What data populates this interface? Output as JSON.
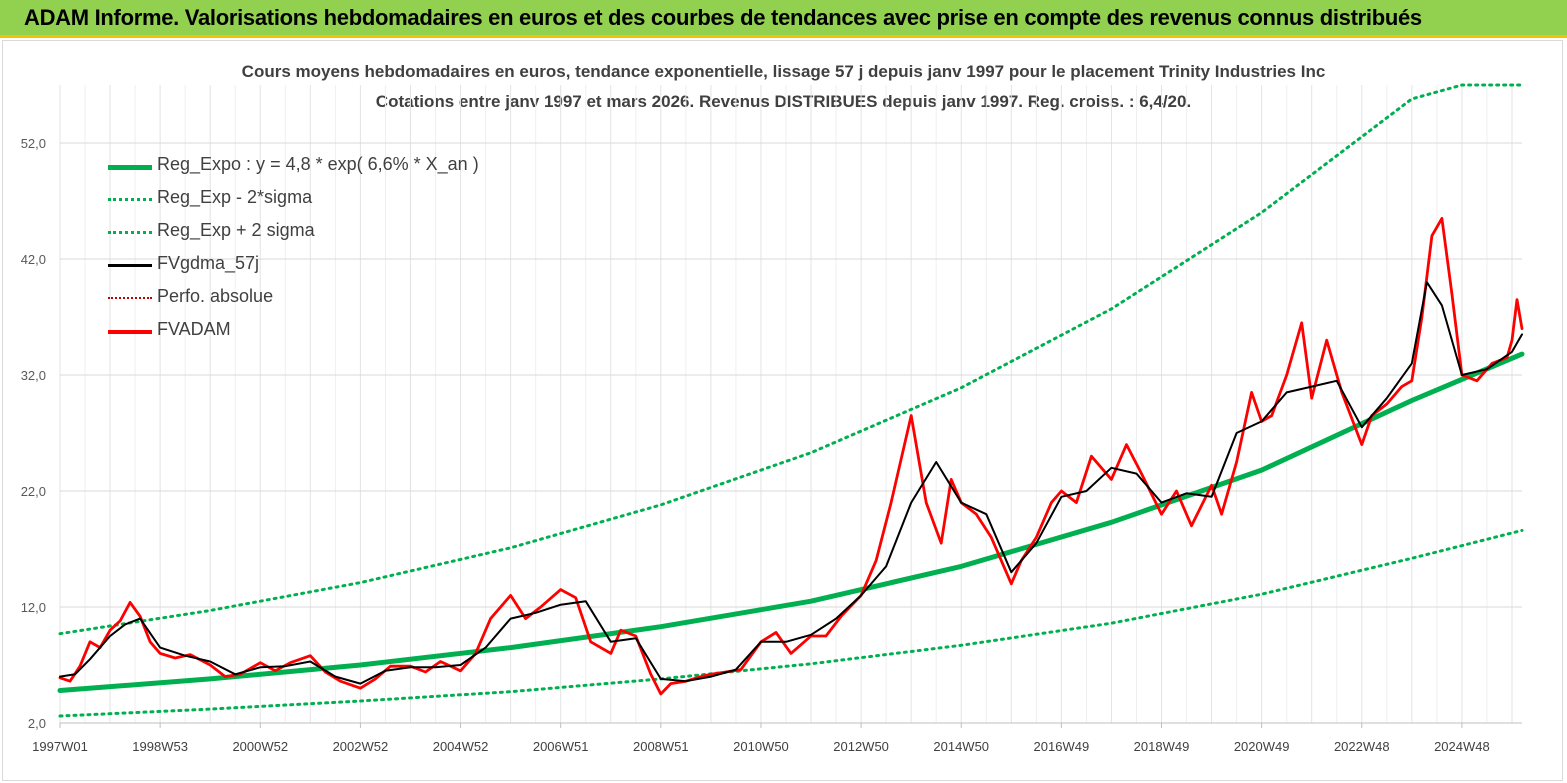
{
  "banner": {
    "title": "ADAM Informe. Valorisations hebdomadaires en euros et des courbes de tendances avec prise en compte des revenus connus distribués"
  },
  "chart_data": {
    "type": "line",
    "title": "Cours moyens hebdomadaires en euros, tendance exponentielle, lissage 57 j depuis janv 1997 pour le placement Trinity Industries Inc",
    "subtitle": "Cotations entre janv 1997 et mars 2026. Revenus DISTRIBUES depuis janv 1997. Reg. croiss. : 6,4/20.",
    "xlabel": "",
    "ylabel": "",
    "xlim": [
      1997.0,
      2026.2
    ],
    "ylim": [
      2.0,
      57.0
    ],
    "yticks": [
      2.0,
      12.0,
      22.0,
      32.0,
      42.0,
      52.0
    ],
    "ytick_labels": [
      "2,0",
      "12,0",
      "22,0",
      "32,0",
      "42,0",
      "52,0"
    ],
    "xticks": [
      1997.0,
      1999.0,
      2001.0,
      2003.0,
      2005.0,
      2007.0,
      2009.0,
      2011.0,
      2013.0,
      2015.0,
      2017.0,
      2019.0,
      2021.0,
      2023.0,
      2025.0
    ],
    "xtick_labels": [
      "1997W01",
      "1998W53",
      "2000W52",
      "2002W52",
      "2004W52",
      "2006W51",
      "2008W51",
      "2010W50",
      "2012W50",
      "2014W50",
      "2016W49",
      "2018W49",
      "2020W49",
      "2022W48",
      "2024W48"
    ],
    "grid": true,
    "legend_position": "top-left",
    "colors": {
      "reg": "#00b050",
      "band": "#00b050",
      "smooth": "#000000",
      "perfo": "#c00000",
      "price": "#ff0000"
    },
    "series": [
      {
        "name": "Reg_Expo : y = 4,8 * exp( 6,6% *  X_an )",
        "style": "thick-solid",
        "color": "#00b050",
        "x": [
          1997.0,
          2000.0,
          2003.0,
          2006.0,
          2009.0,
          2012.0,
          2015.0,
          2018.0,
          2021.0,
          2024.0,
          2026.2
        ],
        "y": [
          4.8,
          5.8,
          7.0,
          8.5,
          10.3,
          12.5,
          15.5,
          19.3,
          23.8,
          29.8,
          33.8
        ]
      },
      {
        "name": "Reg_Exp - 2*sigma",
        "style": "dotted",
        "color": "#00b050",
        "x": [
          1997.0,
          2000.0,
          2003.0,
          2006.0,
          2009.0,
          2012.0,
          2015.0,
          2018.0,
          2021.0,
          2024.0,
          2026.2
        ],
        "y": [
          2.6,
          3.2,
          3.9,
          4.7,
          5.8,
          7.1,
          8.7,
          10.6,
          13.1,
          16.2,
          18.6
        ]
      },
      {
        "name": "Reg_Exp + 2 sigma",
        "style": "dotted",
        "color": "#00b050",
        "x": [
          1997.0,
          2000.0,
          2003.0,
          2006.0,
          2009.0,
          2012.0,
          2015.0,
          2018.0,
          2021.0,
          2024.0,
          2025.0,
          2026.2
        ],
        "y": [
          9.7,
          11.7,
          14.1,
          17.1,
          20.8,
          25.3,
          30.9,
          37.7,
          46.0,
          55.8,
          57.0,
          57.0
        ]
      },
      {
        "name": "FVgdma_57j",
        "style": "solid",
        "color": "#000000",
        "x": [
          1997.0,
          1997.3,
          1997.6,
          1998.0,
          1998.3,
          1998.6,
          1999.0,
          1999.5,
          2000.0,
          2000.5,
          2001.0,
          2001.5,
          2002.0,
          2002.5,
          2003.0,
          2003.5,
          2004.0,
          2004.5,
          2005.0,
          2005.5,
          2006.0,
          2006.5,
          2007.0,
          2007.5,
          2008.0,
          2008.5,
          2009.0,
          2009.5,
          2010.0,
          2010.5,
          2011.0,
          2011.5,
          2012.0,
          2012.5,
          2013.0,
          2013.5,
          2014.0,
          2014.5,
          2015.0,
          2015.5,
          2016.0,
          2016.5,
          2017.0,
          2017.5,
          2018.0,
          2018.5,
          2019.0,
          2019.5,
          2020.0,
          2020.5,
          2021.0,
          2021.5,
          2022.0,
          2022.5,
          2023.0,
          2023.5,
          2024.0,
          2024.3,
          2024.6,
          2025.0,
          2025.5,
          2026.0,
          2026.2
        ],
        "y": [
          6.0,
          6.2,
          7.5,
          9.5,
          10.5,
          11.0,
          8.5,
          7.8,
          7.3,
          6.2,
          6.8,
          6.9,
          7.3,
          6.0,
          5.4,
          6.5,
          6.8,
          6.8,
          7.0,
          8.5,
          11.0,
          11.5,
          12.2,
          12.5,
          9.0,
          9.3,
          5.8,
          5.6,
          6.0,
          6.6,
          9.0,
          9.0,
          9.6,
          11.0,
          13.0,
          15.5,
          21.0,
          24.5,
          21.0,
          20.0,
          15.0,
          17.5,
          21.5,
          22.0,
          24.0,
          23.5,
          21.0,
          21.8,
          21.5,
          27.0,
          28.0,
          30.5,
          31.0,
          31.5,
          27.5,
          30.0,
          33.0,
          40.0,
          38.0,
          32.0,
          32.5,
          34.0,
          35.5
        ]
      },
      {
        "name": "Perfo. absolue",
        "style": "dotted",
        "color": "#c00000",
        "x": [
          1997.0,
          1998.0,
          1999.0,
          2000.0,
          2001.0,
          2002.0,
          2003.0,
          2004.0,
          2005.0,
          2006.0,
          2007.0,
          2008.0,
          2009.0,
          2010.0,
          2011.0,
          2012.0,
          2013.0,
          2014.0,
          2015.0,
          2016.0,
          2017.0,
          2018.0,
          2019.0,
          2020.0,
          2021.0,
          2022.0,
          2023.0,
          2024.0,
          2025.0,
          2026.2
        ],
        "y": [
          6.0,
          9.5,
          8.5,
          7.3,
          6.8,
          7.3,
          5.4,
          6.8,
          7.0,
          11.0,
          12.2,
          9.0,
          5.8,
          6.0,
          9.0,
          9.6,
          13.0,
          21.0,
          21.0,
          15.0,
          21.5,
          24.0,
          21.0,
          21.5,
          28.0,
          31.0,
          27.5,
          33.0,
          32.0,
          35.5
        ]
      },
      {
        "name": "FVADAM",
        "style": "solid",
        "color": "#ff0000",
        "x": [
          1997.0,
          1997.2,
          1997.4,
          1997.6,
          1997.8,
          1998.0,
          1998.2,
          1998.4,
          1998.6,
          1998.8,
          1999.0,
          1999.3,
          1999.6,
          2000.0,
          2000.3,
          2000.6,
          2001.0,
          2001.3,
          2001.6,
          2002.0,
          2002.3,
          2002.6,
          2003.0,
          2003.3,
          2003.6,
          2004.0,
          2004.3,
          2004.6,
          2005.0,
          2005.3,
          2005.6,
          2006.0,
          2006.3,
          2006.6,
          2007.0,
          2007.3,
          2007.6,
          2008.0,
          2008.2,
          2008.5,
          2008.8,
          2009.0,
          2009.2,
          2009.5,
          2009.8,
          2010.0,
          2010.3,
          2010.6,
          2011.0,
          2011.3,
          2011.6,
          2012.0,
          2012.3,
          2012.6,
          2013.0,
          2013.3,
          2013.6,
          2014.0,
          2014.3,
          2014.6,
          2014.8,
          2015.0,
          2015.3,
          2015.6,
          2016.0,
          2016.2,
          2016.5,
          2016.8,
          2017.0,
          2017.3,
          2017.6,
          2018.0,
          2018.3,
          2018.6,
          2019.0,
          2019.3,
          2019.6,
          2020.0,
          2020.2,
          2020.5,
          2020.8,
          2021.0,
          2021.2,
          2021.5,
          2021.8,
          2022.0,
          2022.3,
          2022.6,
          2023.0,
          2023.2,
          2023.5,
          2023.8,
          2024.0,
          2024.2,
          2024.4,
          2024.6,
          2024.8,
          2025.0,
          2025.3,
          2025.6,
          2025.9,
          2026.0,
          2026.1,
          2026.2
        ],
        "y": [
          5.9,
          5.6,
          6.9,
          9.0,
          8.5,
          10.0,
          10.8,
          12.4,
          11.2,
          9.0,
          8.0,
          7.6,
          7.9,
          7.0,
          6.0,
          6.2,
          7.2,
          6.5,
          7.2,
          7.8,
          6.4,
          5.6,
          5.0,
          5.8,
          6.9,
          6.9,
          6.4,
          7.3,
          6.5,
          8.0,
          11.0,
          13.0,
          11.0,
          12.0,
          13.5,
          12.8,
          9.0,
          8.0,
          10.0,
          9.5,
          6.2,
          4.5,
          5.4,
          5.6,
          6.0,
          6.2,
          6.4,
          6.6,
          9.0,
          9.8,
          8.0,
          9.5,
          9.5,
          11.2,
          13.0,
          16.0,
          21.0,
          28.5,
          21.0,
          17.5,
          23.0,
          21.0,
          20.0,
          18.0,
          14.0,
          16.0,
          18.0,
          21.0,
          22.0,
          21.0,
          25.0,
          23.0,
          26.0,
          23.5,
          20.0,
          22.0,
          19.0,
          22.5,
          20.0,
          24.5,
          30.5,
          28.0,
          28.5,
          32.0,
          36.5,
          30.0,
          35.0,
          30.5,
          26.0,
          28.5,
          29.5,
          31.0,
          31.5,
          37.0,
          44.0,
          45.5,
          39.0,
          32.0,
          31.5,
          33.0,
          33.5,
          35.0,
          38.5,
          36.0
        ]
      }
    ]
  }
}
